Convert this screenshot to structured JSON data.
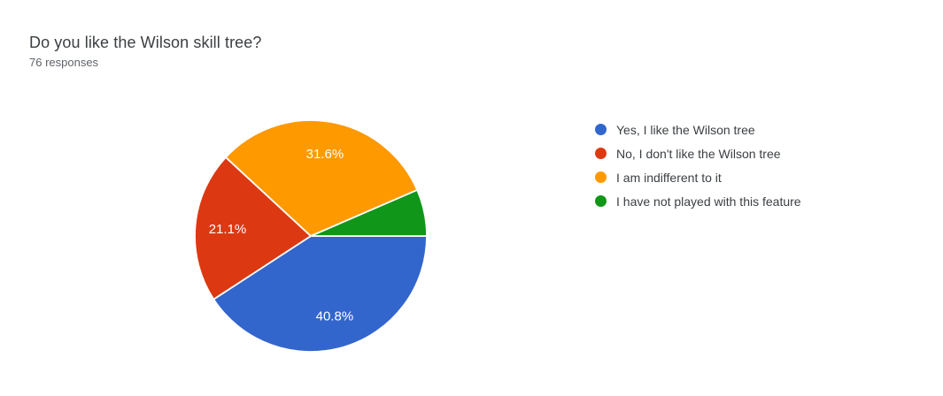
{
  "chart_data": {
    "type": "pie",
    "title": "Do you like the Wilson skill tree?",
    "subtitle": "76 responses",
    "total_responses_text": "76 responses",
    "legend_position": "right",
    "start_angle_clockwise_from_east_deg": 0,
    "slice_label_color": "#ffffff",
    "slice_stroke_color": "#ffffff",
    "slices": [
      {
        "id": "yes",
        "label": "Yes, I like the Wilson tree",
        "value": 40.8,
        "display_label": "40.8%",
        "color": "#3366CC"
      },
      {
        "id": "no",
        "label": "No, I don't like the Wilson tree",
        "value": 21.1,
        "display_label": "21.1%",
        "color": "#DC3912"
      },
      {
        "id": "indifferent",
        "label": "I am indifferent to it",
        "value": 31.6,
        "display_label": "31.6%",
        "color": "#FF9900"
      },
      {
        "id": "not-played",
        "label": "I have not played with this feature",
        "value": 6.5,
        "display_label": "",
        "color": "#109618"
      }
    ]
  },
  "colors": {
    "title_text": "#3c4043",
    "subtitle_text": "#5f6368",
    "legend_text": "#3c4043",
    "background": "#ffffff"
  }
}
